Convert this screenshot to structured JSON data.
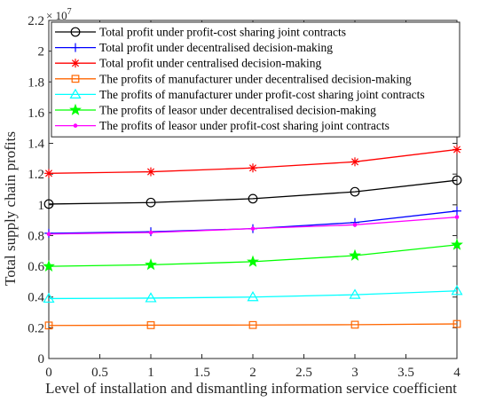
{
  "chart_data": {
    "type": "line",
    "xlabel": "Level of installation and dismantling information service coefficient",
    "ylabel": "Total supply chain profits",
    "y_exponent_label": "× 10",
    "y_exponent_power": "7",
    "y_scale_multiplier": 10000000,
    "xlim": [
      0,
      4
    ],
    "ylim": [
      0,
      2.2
    ],
    "x_ticks": [
      0,
      0.5,
      1,
      1.5,
      2,
      2.5,
      3,
      3.5,
      4
    ],
    "x_tick_labels": [
      "0",
      "0.5",
      "1",
      "1.5",
      "2",
      "2.5",
      "3",
      "3.5",
      "4"
    ],
    "y_ticks": [
      0,
      0.2,
      0.4,
      0.6,
      0.8,
      1,
      1.2,
      1.4,
      1.6,
      1.8,
      2,
      2.2
    ],
    "y_tick_labels": [
      "0",
      "0.2",
      "0.4",
      "0.6",
      "0.8",
      "1",
      "1.2",
      "1.4",
      "1.6",
      "1.8",
      "2",
      "2.2"
    ],
    "grid": false,
    "legend_position": "top",
    "x": [
      0,
      1,
      2,
      3,
      4
    ],
    "series": [
      {
        "name": "Total profit under profit-cost sharing joint contracts",
        "values": [
          1.005,
          1.015,
          1.04,
          1.085,
          1.16
        ],
        "color": "#000000",
        "marker": "circle"
      },
      {
        "name": "Total profit under decentralised decision-making",
        "values": [
          0.815,
          0.825,
          0.845,
          0.885,
          0.96
        ],
        "color": "#0000ff",
        "marker": "plus"
      },
      {
        "name": "Total profit under centralised decision-making",
        "values": [
          1.205,
          1.215,
          1.24,
          1.28,
          1.36
        ],
        "color": "#ff0000",
        "marker": "asterisk"
      },
      {
        "name": "The profits of manufacturer under decentralised decision-making",
        "values": [
          0.215,
          0.217,
          0.218,
          0.22,
          0.225
        ],
        "color": "#ff6600",
        "marker": "square"
      },
      {
        "name": "The profits of manufacturer under profit-cost sharing joint contracts",
        "values": [
          0.39,
          0.393,
          0.4,
          0.415,
          0.44
        ],
        "color": "#00ffff",
        "marker": "triangle"
      },
      {
        "name": "The profits of leasor under decentralised decision-making",
        "values": [
          0.6,
          0.61,
          0.63,
          0.67,
          0.74
        ],
        "color": "#00ff00",
        "marker": "star"
      },
      {
        "name": "The profits of leasor under profit-cost sharing joint contracts",
        "values": [
          0.81,
          0.82,
          0.845,
          0.87,
          0.92
        ],
        "color": "#ff00ff",
        "marker": "dot"
      }
    ]
  }
}
